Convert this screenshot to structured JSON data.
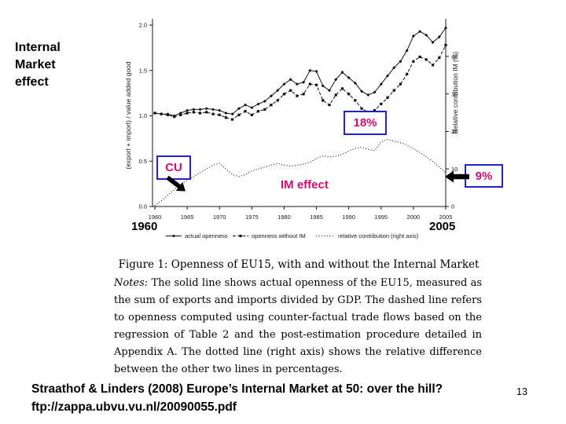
{
  "slide": {
    "side_label": "Internal Market effect",
    "citation_line1": "Straathof & Linders (2008) Europe’s Internal Market at 50: over the hill?",
    "citation_line2": "ftp://zappa.ubvu.vu.nl/20090055.pdf",
    "page_number": "13"
  },
  "annotations": {
    "cu_label": "CU",
    "peak_label": "18%",
    "end_label": "9%",
    "im_effect_label": "IM effect",
    "start_year": "1960",
    "end_year": "2005",
    "accent_color": "#d01070",
    "box_border_color": "#2222cc",
    "arrow_color": "#000000"
  },
  "figure": {
    "caption": "Figure 1: Openness of EU15, with and without the Internal Market",
    "notes_label": "Notes:",
    "notes_text": "The solid line shows actual openness of the EU15, measured as the sum of exports and imports divided by GDP. The dashed line refers to openness computed using counter-factual trade flows based on the regression of Table 2 and the post-estimation procedure detailed in Appendix A. The dotted line (right axis) shows the relative difference between the other two lines in percentages."
  },
  "chart_data": {
    "type": "line",
    "x": [
      1960,
      1961,
      1962,
      1963,
      1964,
      1965,
      1966,
      1967,
      1968,
      1969,
      1970,
      1971,
      1972,
      1973,
      1974,
      1975,
      1976,
      1977,
      1978,
      1979,
      1980,
      1981,
      1982,
      1983,
      1984,
      1985,
      1986,
      1987,
      1988,
      1989,
      1990,
      1991,
      1992,
      1993,
      1994,
      1995,
      1996,
      1997,
      1998,
      1999,
      2000,
      2001,
      2002,
      2003,
      2004,
      2005
    ],
    "x_ticks": [
      1960,
      1965,
      1970,
      1975,
      1980,
      1985,
      1990,
      1995,
      2000,
      2005
    ],
    "left_axis": {
      "label": "(export + import) / value added good",
      "tick_values": [
        0,
        0.5,
        1,
        1.5,
        2
      ],
      "tick_labels": [
        "0.0",
        "0.5",
        "1.0",
        "1.5",
        "2.0"
      ],
      "range": [
        0,
        2.1
      ]
    },
    "right_axis": {
      "label": "Relative contribution IM (%)",
      "tick_values": [
        0,
        10,
        20,
        30,
        40
      ],
      "tick_labels": [
        "0",
        "10",
        "20",
        "30",
        "40"
      ],
      "range": [
        0,
        50
      ]
    },
    "legend_position": "bottom",
    "series": [
      {
        "name": "actual openness",
        "axis": "left",
        "style": "solid-diamond",
        "values": [
          1.03,
          1.02,
          1.02,
          1.0,
          1.03,
          1.06,
          1.07,
          1.07,
          1.08,
          1.07,
          1.06,
          1.03,
          1.02,
          1.08,
          1.12,
          1.09,
          1.13,
          1.16,
          1.22,
          1.28,
          1.35,
          1.4,
          1.35,
          1.37,
          1.5,
          1.49,
          1.33,
          1.28,
          1.4,
          1.48,
          1.42,
          1.36,
          1.27,
          1.23,
          1.26,
          1.35,
          1.44,
          1.53,
          1.6,
          1.72,
          1.88,
          1.93,
          1.89,
          1.81,
          1.87,
          1.97
        ]
      },
      {
        "name": "openness without IM",
        "axis": "left",
        "style": "dashed-square",
        "values": [
          1.03,
          1.02,
          1.01,
          0.99,
          1.01,
          1.03,
          1.04,
          1.03,
          1.04,
          1.02,
          1.01,
          0.98,
          0.96,
          1.01,
          1.05,
          1.01,
          1.05,
          1.07,
          1.12,
          1.17,
          1.24,
          1.28,
          1.22,
          1.24,
          1.35,
          1.34,
          1.17,
          1.12,
          1.23,
          1.3,
          1.24,
          1.17,
          1.08,
          1.04,
          1.06,
          1.13,
          1.2,
          1.28,
          1.35,
          1.46,
          1.6,
          1.65,
          1.62,
          1.56,
          1.64,
          1.78
        ]
      },
      {
        "name": "relative contribution (right axis)",
        "axis": "right",
        "style": "dotted",
        "values": [
          0.2,
          1.5,
          3,
          4.5,
          6,
          7,
          8,
          9,
          10,
          11,
          11.5,
          10,
          8.5,
          8,
          8.5,
          9.5,
          10,
          10.5,
          11,
          11.5,
          11,
          10.8,
          11,
          11.3,
          11.8,
          12.8,
          13.5,
          13.2,
          13.4,
          13.9,
          14.8,
          15.5,
          15.8,
          15.2,
          14.9,
          17.2,
          17.9,
          17.4,
          17,
          16.4,
          15.4,
          14.4,
          13.2,
          12,
          10.5,
          9
        ]
      }
    ]
  }
}
